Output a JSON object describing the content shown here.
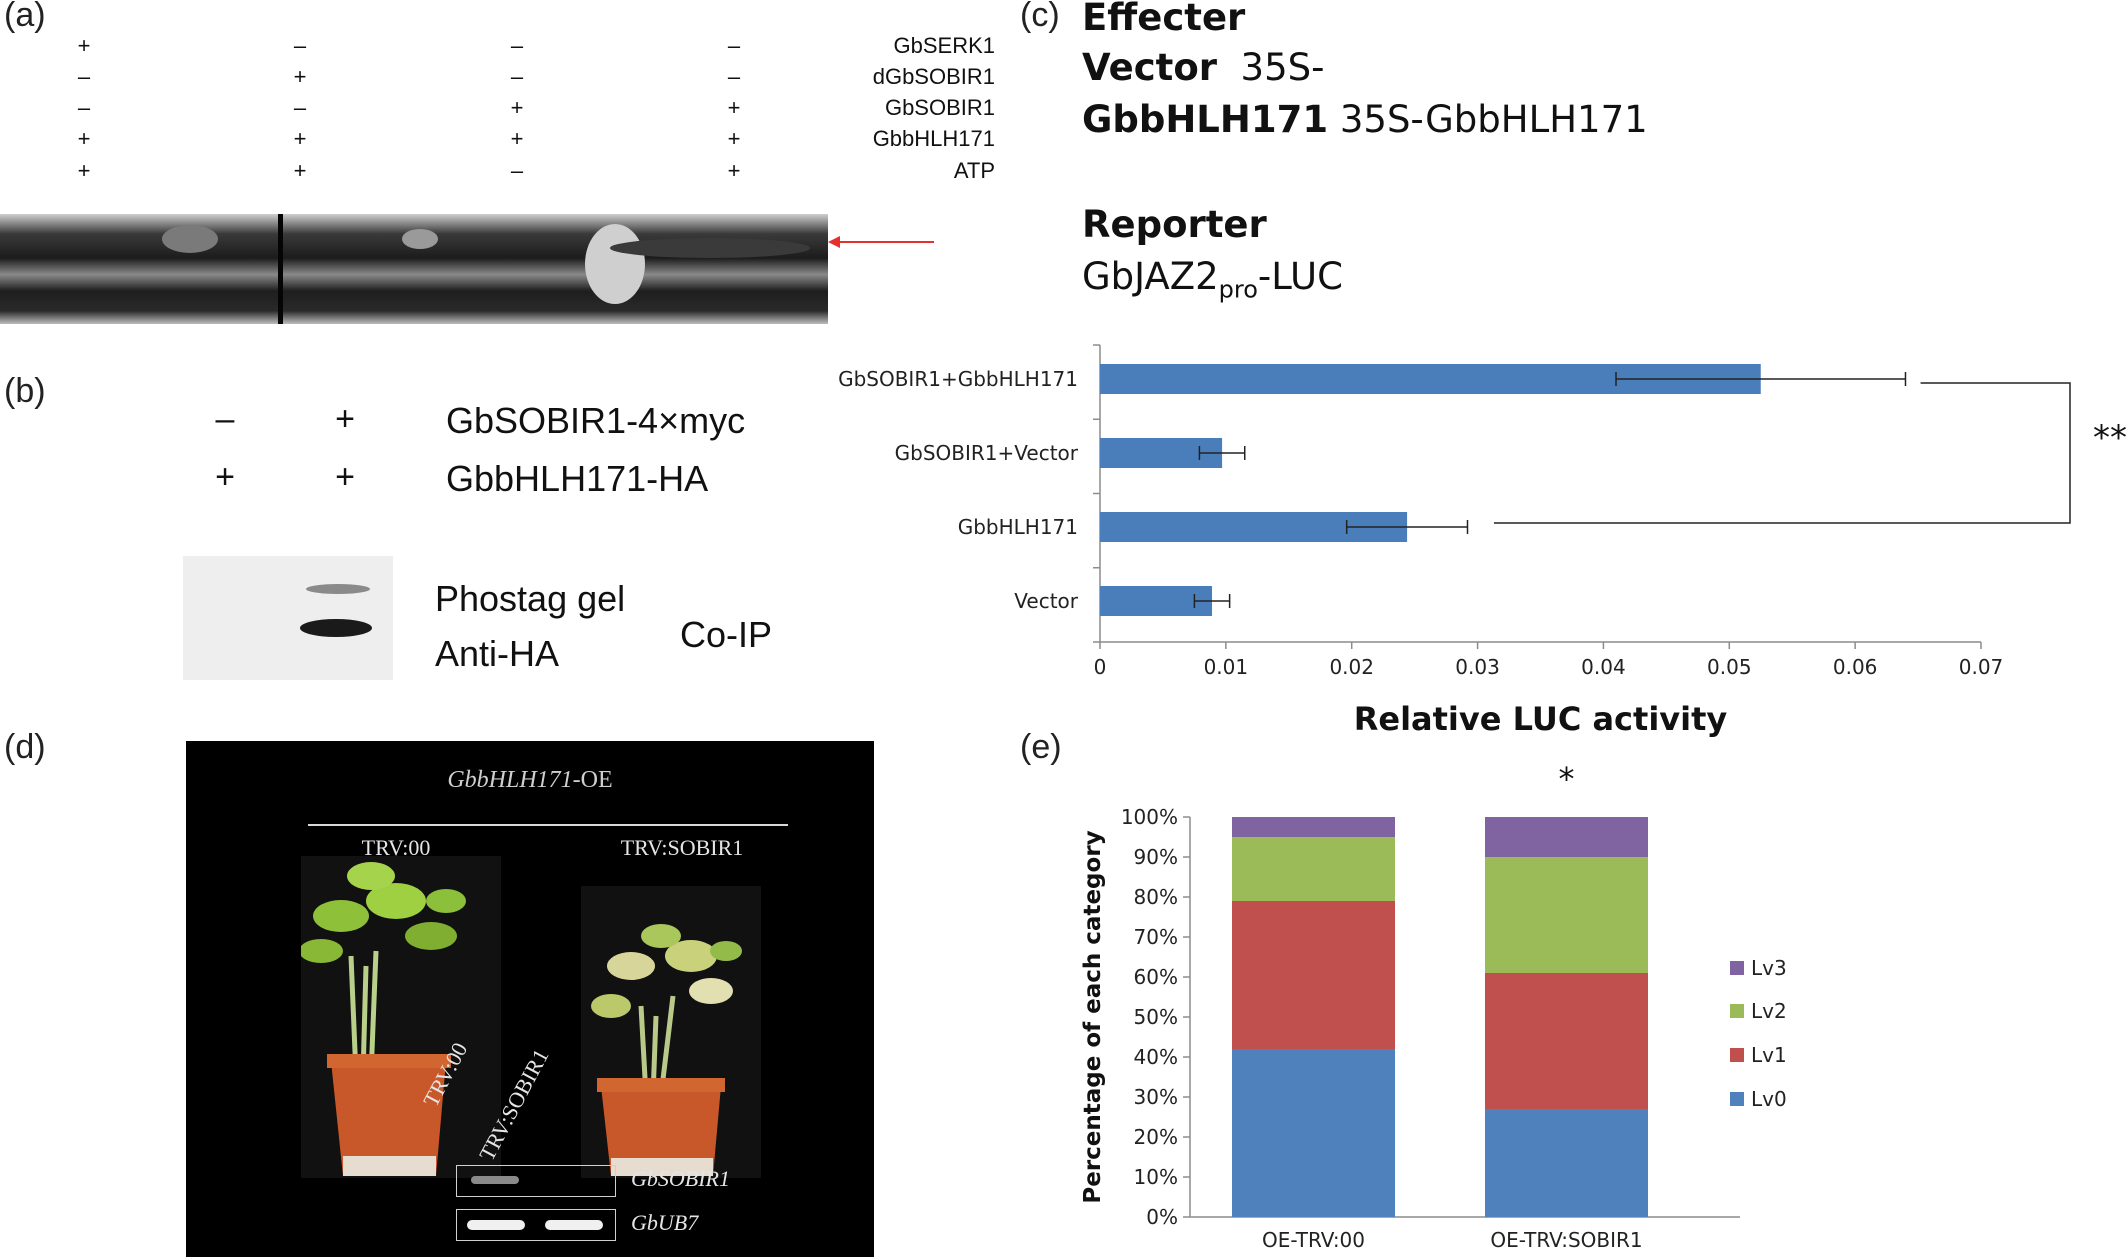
{
  "panel_a": {
    "label": "(a)",
    "rows": [
      "GbSERK1",
      "dGbSOBIR1",
      "GbSOBIR1",
      "GbbHLH171",
      "ATP"
    ],
    "signs": [
      [
        "+",
        "–",
        "–",
        "–"
      ],
      [
        "–",
        "+",
        "–",
        "–"
      ],
      [
        "–",
        "–",
        "+",
        "+"
      ],
      [
        "+",
        "+",
        "+",
        "+"
      ],
      [
        "+",
        "+",
        "–",
        "+"
      ]
    ],
    "arrow_color": "#e53030"
  },
  "panel_b": {
    "label": "(b)",
    "row1_signs": [
      "–",
      "+"
    ],
    "row1_label": "GbSOBIR1-4×myc",
    "row2_signs": [
      "+",
      "+"
    ],
    "row2_label": "GbbHLH171-HA",
    "blot_label1": "Phostag gel",
    "blot_label2": "Anti-HA",
    "coip": "Co-IP"
  },
  "panel_c": {
    "label": "(c)",
    "effecter": "Effecter",
    "vector_bold": "Vector",
    "vector_text": "35S-",
    "hlh_bold": "GbbHLH171",
    "hlh_text": "35S-GbbHLH171",
    "reporter": "Reporter",
    "reporter_a": "GbJAZ2",
    "reporter_sub": "pro",
    "reporter_b": "-LUC",
    "sig": "**"
  },
  "chart_data": [
    {
      "type": "bar",
      "orientation": "horizontal",
      "categories": [
        "GbSOBIR1+GbbHLH171",
        "GbSOBIR1+Vector",
        "GbbHLH171",
        "Vector"
      ],
      "values": [
        0.0525,
        0.0097,
        0.0244,
        0.0089
      ],
      "errors": [
        0.0115,
        0.0018,
        0.0048,
        0.0014
      ],
      "xlabel": "Relative LUC activity",
      "xlim": [
        0,
        0.07
      ],
      "xticks": [
        "0",
        "0.01",
        "0.02",
        "0.03",
        "0.04",
        "0.05",
        "0.06",
        "0.07"
      ],
      "color": "#4a7ebb"
    },
    {
      "type": "bar",
      "stacked": true,
      "categories": [
        "OE-TRV:00",
        "OE-TRV:SOBIR1"
      ],
      "series": [
        {
          "name": "Lv0",
          "values": [
            42,
            27
          ],
          "color": "#4f81bd"
        },
        {
          "name": "Lv1",
          "values": [
            37,
            34
          ],
          "color": "#c0504d"
        },
        {
          "name": "Lv2",
          "values": [
            16,
            29
          ],
          "color": "#9bbb59"
        },
        {
          "name": "Lv3",
          "values": [
            5,
            10
          ],
          "color": "#8064a2"
        }
      ],
      "ylabel": "Percentage of each category",
      "ylim": [
        0,
        100
      ],
      "yticks": [
        "0%",
        "10%",
        "20%",
        "30%",
        "40%",
        "50%",
        "60%",
        "70%",
        "80%",
        "90%",
        "100%"
      ],
      "legend_position": "right",
      "sig": "*"
    }
  ],
  "panel_d": {
    "label": "(d)",
    "title_italic": "GbbHLH171",
    "title_rest": "-OE",
    "left_label": "TRV:00",
    "right_label": "TRV:SOBIR1",
    "lane1": "TRV:00",
    "lane2": "TRV:SOBIR1",
    "gene1": "GbSOBIR1",
    "gene2": "GbUB7"
  },
  "panel_e": {
    "label": "(e)"
  }
}
